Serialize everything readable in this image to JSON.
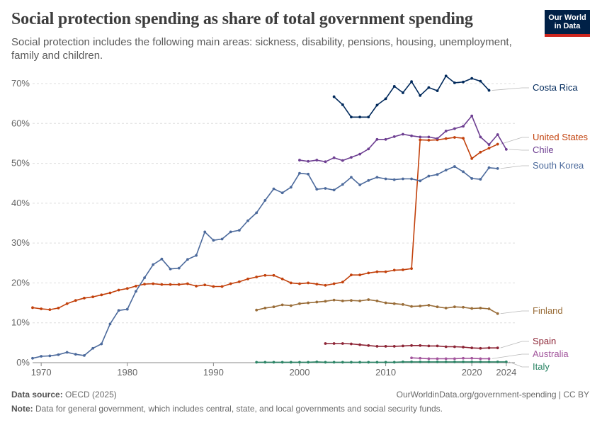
{
  "header": {
    "title": "Social protection spending as share of total government spending",
    "subtitle": "Social protection includes the following main areas: sickness, disability, pensions, housing, unemployment, family and children.",
    "logo_line1": "Our World",
    "logo_line2": "in Data"
  },
  "footer": {
    "source_label": "Data source:",
    "source_text": "OECD (2025)",
    "url_text": "OurWorldinData.org/government-spending | CC BY",
    "note_label": "Note:",
    "note_text": "Data for general government, which includes central, state, and local governments and social security funds."
  },
  "colors": {
    "costa_rica": "#00295b",
    "united_states": "#c2410c",
    "chile": "#6d3e91",
    "south_korea": "#4c6a9c",
    "finland": "#996d39",
    "spain": "#8c2435",
    "australia": "#a2559c",
    "italy": "#2b8465"
  },
  "chart_data": {
    "type": "line",
    "xlim": [
      1969,
      2025
    ],
    "ylim": [
      0,
      70
    ],
    "x_ticks": [
      1970,
      1980,
      1990,
      2000,
      2010,
      2020,
      2024
    ],
    "y_ticks": [
      0,
      10,
      20,
      30,
      40,
      50,
      60,
      70
    ],
    "y_tick_labels": [
      "0%",
      "10%",
      "20%",
      "30%",
      "40%",
      "50%",
      "60%",
      "70%"
    ],
    "grid": "horizontal dashed",
    "legend": "right, labels at line ends",
    "series": [
      {
        "name": "Costa Rica",
        "color_key": "costa_rica",
        "points": [
          [
            2004,
            66.7
          ],
          [
            2005,
            64.7
          ],
          [
            2006,
            61.6
          ],
          [
            2007,
            61.6
          ],
          [
            2008,
            61.6
          ],
          [
            2009,
            64.6
          ],
          [
            2010,
            66.2
          ],
          [
            2011,
            69.3
          ],
          [
            2012,
            67.7
          ],
          [
            2013,
            70.5
          ],
          [
            2014,
            67.0
          ],
          [
            2015,
            69.0
          ],
          [
            2016,
            68.2
          ],
          [
            2017,
            71.9
          ],
          [
            2018,
            70.2
          ],
          [
            2019,
            70.4
          ],
          [
            2020,
            71.3
          ],
          [
            2021,
            70.6
          ],
          [
            2022,
            68.3
          ]
        ]
      },
      {
        "name": "United States",
        "color_key": "united_states",
        "points": [
          [
            1969,
            13.8
          ],
          [
            1970,
            13.5
          ],
          [
            1971,
            13.3
          ],
          [
            1972,
            13.7
          ],
          [
            1973,
            14.8
          ],
          [
            1974,
            15.6
          ],
          [
            1975,
            16.2
          ],
          [
            1976,
            16.5
          ],
          [
            1977,
            17.0
          ],
          [
            1978,
            17.5
          ],
          [
            1979,
            18.2
          ],
          [
            1980,
            18.6
          ],
          [
            1981,
            19.2
          ],
          [
            1982,
            19.7
          ],
          [
            1983,
            19.8
          ],
          [
            1984,
            19.6
          ],
          [
            1985,
            19.6
          ],
          [
            1986,
            19.6
          ],
          [
            1987,
            19.8
          ],
          [
            1988,
            19.2
          ],
          [
            1989,
            19.5
          ],
          [
            1990,
            19.1
          ],
          [
            1991,
            19.1
          ],
          [
            1992,
            19.8
          ],
          [
            1993,
            20.3
          ],
          [
            1994,
            21.0
          ],
          [
            1995,
            21.5
          ],
          [
            1996,
            21.9
          ],
          [
            1997,
            21.9
          ],
          [
            1998,
            21.0
          ],
          [
            1999,
            20.0
          ],
          [
            2000,
            19.8
          ],
          [
            2001,
            20.0
          ],
          [
            2002,
            19.7
          ],
          [
            2003,
            19.4
          ],
          [
            2004,
            19.8
          ],
          [
            2005,
            20.2
          ],
          [
            2006,
            22.0
          ],
          [
            2007,
            22.0
          ],
          [
            2008,
            22.5
          ],
          [
            2009,
            22.8
          ],
          [
            2010,
            22.8
          ],
          [
            2011,
            23.2
          ],
          [
            2012,
            23.3
          ],
          [
            2013,
            23.6
          ],
          [
            2014,
            55.9
          ],
          [
            2015,
            55.8
          ],
          [
            2016,
            55.9
          ],
          [
            2017,
            56.2
          ],
          [
            2018,
            56.5
          ],
          [
            2019,
            56.3
          ],
          [
            2020,
            51.2
          ],
          [
            2021,
            52.8
          ],
          [
            2022,
            53.8
          ],
          [
            2023,
            54.8
          ]
        ]
      },
      {
        "name": "Chile",
        "color_key": "chile",
        "points": [
          [
            2000,
            50.8
          ],
          [
            2001,
            50.5
          ],
          [
            2002,
            50.8
          ],
          [
            2003,
            50.4
          ],
          [
            2004,
            51.4
          ],
          [
            2005,
            50.7
          ],
          [
            2006,
            51.5
          ],
          [
            2007,
            52.3
          ],
          [
            2008,
            53.6
          ],
          [
            2009,
            56.0
          ],
          [
            2010,
            56.0
          ],
          [
            2011,
            56.7
          ],
          [
            2012,
            57.3
          ],
          [
            2013,
            56.9
          ],
          [
            2014,
            56.6
          ],
          [
            2015,
            56.6
          ],
          [
            2016,
            56.2
          ],
          [
            2017,
            58.1
          ],
          [
            2018,
            58.7
          ],
          [
            2019,
            59.3
          ],
          [
            2020,
            61.9
          ],
          [
            2021,
            56.6
          ],
          [
            2022,
            54.7
          ],
          [
            2023,
            57.2
          ],
          [
            2024,
            53.5
          ]
        ]
      },
      {
        "name": "South Korea",
        "color_key": "south_korea",
        "points": [
          [
            1969,
            1.1
          ],
          [
            1970,
            1.6
          ],
          [
            1971,
            1.7
          ],
          [
            1972,
            2.0
          ],
          [
            1973,
            2.6
          ],
          [
            1974,
            2.1
          ],
          [
            1975,
            1.8
          ],
          [
            1976,
            3.6
          ],
          [
            1977,
            4.7
          ],
          [
            1978,
            9.7
          ],
          [
            1979,
            13.1
          ],
          [
            1980,
            13.4
          ],
          [
            1981,
            17.9
          ],
          [
            1982,
            21.3
          ],
          [
            1983,
            24.6
          ],
          [
            1984,
            26.0
          ],
          [
            1985,
            23.5
          ],
          [
            1986,
            23.7
          ],
          [
            1987,
            25.9
          ],
          [
            1988,
            26.9
          ],
          [
            1989,
            32.8
          ],
          [
            1990,
            30.7
          ],
          [
            1991,
            31.0
          ],
          [
            1992,
            32.8
          ],
          [
            1993,
            33.2
          ],
          [
            1994,
            35.6
          ],
          [
            1995,
            37.6
          ],
          [
            1996,
            40.7
          ],
          [
            1997,
            43.6
          ],
          [
            1998,
            42.6
          ],
          [
            1999,
            44.0
          ],
          [
            2000,
            47.5
          ],
          [
            2001,
            47.3
          ],
          [
            2002,
            43.5
          ],
          [
            2003,
            43.7
          ],
          [
            2004,
            43.3
          ],
          [
            2005,
            44.7
          ],
          [
            2006,
            46.5
          ],
          [
            2007,
            44.6
          ],
          [
            2008,
            45.7
          ],
          [
            2009,
            46.5
          ],
          [
            2010,
            46.1
          ],
          [
            2011,
            45.9
          ],
          [
            2012,
            46.1
          ],
          [
            2013,
            46.1
          ],
          [
            2014,
            45.6
          ],
          [
            2015,
            46.8
          ],
          [
            2016,
            47.2
          ],
          [
            2017,
            48.3
          ],
          [
            2018,
            49.2
          ],
          [
            2019,
            47.9
          ],
          [
            2020,
            46.2
          ],
          [
            2021,
            46.0
          ],
          [
            2022,
            48.9
          ],
          [
            2023,
            48.7
          ]
        ]
      },
      {
        "name": "Finland",
        "color_key": "finland",
        "points": [
          [
            1995,
            13.2
          ],
          [
            1996,
            13.7
          ],
          [
            1997,
            14.0
          ],
          [
            1998,
            14.5
          ],
          [
            1999,
            14.3
          ],
          [
            2000,
            14.8
          ],
          [
            2001,
            15.0
          ],
          [
            2002,
            15.2
          ],
          [
            2003,
            15.4
          ],
          [
            2004,
            15.7
          ],
          [
            2005,
            15.5
          ],
          [
            2006,
            15.6
          ],
          [
            2007,
            15.5
          ],
          [
            2008,
            15.8
          ],
          [
            2009,
            15.5
          ],
          [
            2010,
            15.0
          ],
          [
            2011,
            14.8
          ],
          [
            2012,
            14.6
          ],
          [
            2013,
            14.1
          ],
          [
            2014,
            14.2
          ],
          [
            2015,
            14.4
          ],
          [
            2016,
            14.0
          ],
          [
            2017,
            13.7
          ],
          [
            2018,
            14.0
          ],
          [
            2019,
            13.9
          ],
          [
            2020,
            13.6
          ],
          [
            2021,
            13.7
          ],
          [
            2022,
            13.5
          ],
          [
            2023,
            12.3
          ]
        ]
      },
      {
        "name": "Spain",
        "color_key": "spain",
        "points": [
          [
            2003,
            4.8
          ],
          [
            2004,
            4.8
          ],
          [
            2005,
            4.8
          ],
          [
            2006,
            4.7
          ],
          [
            2007,
            4.5
          ],
          [
            2008,
            4.3
          ],
          [
            2009,
            4.1
          ],
          [
            2010,
            4.1
          ],
          [
            2011,
            4.1
          ],
          [
            2012,
            4.2
          ],
          [
            2013,
            4.3
          ],
          [
            2014,
            4.3
          ],
          [
            2015,
            4.2
          ],
          [
            2016,
            4.2
          ],
          [
            2017,
            4.0
          ],
          [
            2018,
            4.0
          ],
          [
            2019,
            3.9
          ],
          [
            2020,
            3.7
          ],
          [
            2021,
            3.6
          ],
          [
            2022,
            3.7
          ],
          [
            2023,
            3.7
          ]
        ]
      },
      {
        "name": "Australia",
        "color_key": "australia",
        "points": [
          [
            2013,
            1.2
          ],
          [
            2014,
            1.1
          ],
          [
            2015,
            1.0
          ],
          [
            2016,
            1.0
          ],
          [
            2017,
            1.0
          ],
          [
            2018,
            1.0
          ],
          [
            2019,
            1.1
          ],
          [
            2020,
            1.1
          ],
          [
            2021,
            1.0
          ],
          [
            2022,
            1.0
          ]
        ]
      },
      {
        "name": "Italy",
        "color_key": "italy",
        "points": [
          [
            1995,
            0.1
          ],
          [
            1996,
            0.1
          ],
          [
            1997,
            0.1
          ],
          [
            1998,
            0.1
          ],
          [
            1999,
            0.1
          ],
          [
            2000,
            0.1
          ],
          [
            2001,
            0.1
          ],
          [
            2002,
            0.2
          ],
          [
            2003,
            0.1
          ],
          [
            2004,
            0.1
          ],
          [
            2005,
            0.1
          ],
          [
            2006,
            0.1
          ],
          [
            2007,
            0.1
          ],
          [
            2008,
            0.1
          ],
          [
            2009,
            0.1
          ],
          [
            2010,
            0.1
          ],
          [
            2011,
            0.1
          ],
          [
            2012,
            0.2
          ],
          [
            2013,
            0.2
          ],
          [
            2014,
            0.2
          ],
          [
            2015,
            0.2
          ],
          [
            2016,
            0.2
          ],
          [
            2017,
            0.2
          ],
          [
            2018,
            0.2
          ],
          [
            2019,
            0.2
          ],
          [
            2020,
            0.2
          ],
          [
            2021,
            0.2
          ],
          [
            2022,
            0.2
          ],
          [
            2023,
            0.2
          ],
          [
            2024,
            0.2
          ]
        ]
      }
    ]
  }
}
